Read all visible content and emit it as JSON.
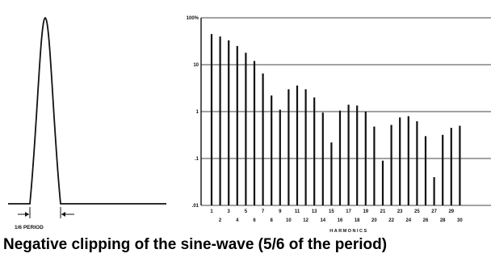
{
  "colors": {
    "ink": "#111111",
    "grid": "#444444",
    "background": "#ffffff"
  },
  "waveform": {
    "period_label": "1/6 PERIOD"
  },
  "caption": "Negative clipping of the sine-wave (5/6 of the period)",
  "chart_data": {
    "type": "bar",
    "title": "",
    "xlabel": "HARMONICS",
    "ylabel": "",
    "yscale": "log",
    "ylim": [
      0.01,
      100
    ],
    "y_tick_labels": [
      "100%",
      "10",
      "1",
      ".1",
      ".01"
    ],
    "y_ticks": [
      100,
      10,
      1,
      0.1,
      0.01
    ],
    "grid": true,
    "x_tick_labels_top": [
      "1",
      "3",
      "5",
      "7",
      "9",
      "11",
      "13",
      "15",
      "17",
      "19",
      "21",
      "23",
      "25",
      "27",
      "29"
    ],
    "x_tick_labels_bottom": [
      "2",
      "4",
      "6",
      "8",
      "10",
      "12",
      "14",
      "16",
      "18",
      "20",
      "22",
      "24",
      "26",
      "28",
      "30"
    ],
    "categories": [
      "1",
      "2",
      "3",
      "4",
      "5",
      "6",
      "7",
      "8",
      "9",
      "10",
      "11",
      "12",
      "13",
      "14",
      "15",
      "16",
      "17",
      "18",
      "19",
      "20",
      "21",
      "22",
      "23",
      "24",
      "25",
      "26",
      "27",
      "28",
      "29",
      "30"
    ],
    "values": [
      45,
      40,
      33,
      25,
      18,
      12,
      6.5,
      2.2,
      1.1,
      3.0,
      3.6,
      3.0,
      2.0,
      0.95,
      0.22,
      1.05,
      1.4,
      1.35,
      1.0,
      0.48,
      0.09,
      0.52,
      0.75,
      0.8,
      0.62,
      0.3,
      0.04,
      0.32,
      0.45,
      0.5
    ]
  }
}
